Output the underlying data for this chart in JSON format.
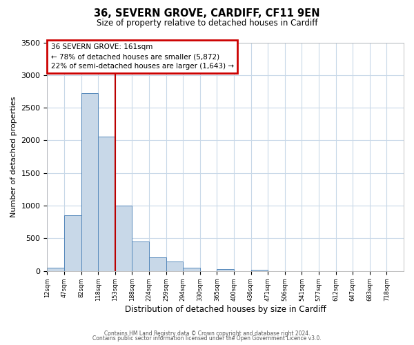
{
  "title": "36, SEVERN GROVE, CARDIFF, CF11 9EN",
  "subtitle": "Size of property relative to detached houses in Cardiff",
  "xlabel": "Distribution of detached houses by size in Cardiff",
  "ylabel": "Number of detached properties",
  "bin_labels": [
    "12sqm",
    "47sqm",
    "82sqm",
    "118sqm",
    "153sqm",
    "188sqm",
    "224sqm",
    "259sqm",
    "294sqm",
    "330sqm",
    "365sqm",
    "400sqm",
    "436sqm",
    "471sqm",
    "506sqm",
    "541sqm",
    "577sqm",
    "612sqm",
    "647sqm",
    "683sqm",
    "718sqm"
  ],
  "bar_values": [
    55,
    850,
    2720,
    2060,
    1000,
    450,
    205,
    145,
    50,
    0,
    30,
    0,
    20,
    0,
    0,
    0,
    0,
    0,
    0,
    0,
    0
  ],
  "bar_color": "#c8d8e8",
  "bar_edgecolor": "#5588bb",
  "ylim": [
    0,
    3500
  ],
  "yticks": [
    0,
    500,
    1000,
    1500,
    2000,
    2500,
    3000,
    3500
  ],
  "vline_x": 4.0,
  "vline_color": "#bb0000",
  "annotation_title": "36 SEVERN GROVE: 161sqm",
  "annotation_line1": "← 78% of detached houses are smaller (5,872)",
  "annotation_line2": "22% of semi-detached houses are larger (1,643) →",
  "annotation_box_color": "#cc0000",
  "footnote1": "Contains HM Land Registry data © Crown copyright and database right 2024.",
  "footnote2": "Contains public sector information licensed under the Open Government Licence v3.0.",
  "background_color": "#ffffff",
  "grid_color": "#c8d8e8"
}
